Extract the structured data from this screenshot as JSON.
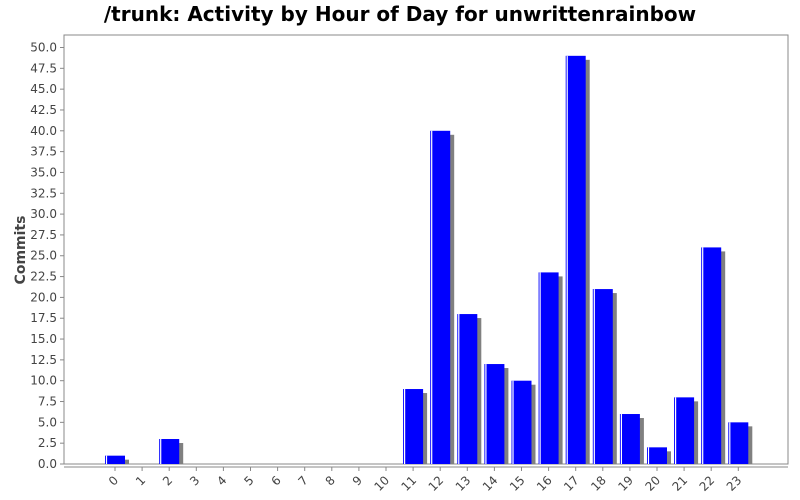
{
  "chart_data": {
    "type": "bar",
    "title": "/trunk: Activity by Hour of Day for unwrittenrainbow",
    "xlabel": "",
    "ylabel": "Commits",
    "categories": [
      "0",
      "1",
      "2",
      "3",
      "4",
      "5",
      "6",
      "7",
      "8",
      "9",
      "10",
      "11",
      "12",
      "13",
      "14",
      "15",
      "16",
      "17",
      "18",
      "19",
      "20",
      "21",
      "22",
      "23"
    ],
    "values": [
      1,
      0,
      3,
      0,
      0,
      0,
      0,
      0,
      0,
      0,
      0,
      9,
      40,
      18,
      12,
      10,
      23,
      49,
      21,
      6,
      2,
      8,
      26,
      5
    ],
    "ylim": [
      0,
      51.5
    ],
    "yticks": [
      "0.0",
      "2.5",
      "5.0",
      "7.5",
      "10.0",
      "12.5",
      "15.0",
      "17.5",
      "20.0",
      "22.5",
      "25.0",
      "27.5",
      "30.0",
      "32.5",
      "35.0",
      "37.5",
      "40.0",
      "42.5",
      "45.0",
      "47.5",
      "50.0"
    ],
    "grid": false,
    "bar_color": "#0000ff",
    "shadow_color": "#808080"
  }
}
